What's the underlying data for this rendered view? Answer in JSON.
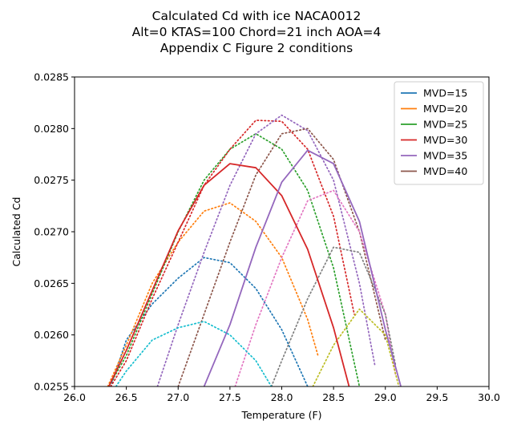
{
  "chart_data": {
    "type": "line",
    "title_lines": [
      "Calculated Cd with ice NACA0012",
      "Alt=0 KTAS=100 Chord=21 inch AOA=4",
      "Appendix C Figure 2 conditions"
    ],
    "xlabel": "Temperature (F)",
    "ylabel": "Calculated Cd",
    "xlim": [
      26.0,
      30.0
    ],
    "ylim": [
      0.0255,
      0.0285
    ],
    "xticks": [
      "26.0",
      "26.5",
      "27.0",
      "27.5",
      "28.0",
      "28.5",
      "29.0",
      "29.5",
      "30.0"
    ],
    "yticks": [
      "0.0255",
      "0.0260",
      "0.0265",
      "0.0270",
      "0.0275",
      "0.0280",
      "0.0285"
    ],
    "grid": false,
    "legend_position": "top-right",
    "legend": [
      {
        "label": "MVD=15",
        "color": "#1f77b4"
      },
      {
        "label": "MVD=20",
        "color": "#ff7f0e"
      },
      {
        "label": "MVD=25",
        "color": "#2ca02c"
      },
      {
        "label": "MVD=30",
        "color": "#d62728"
      },
      {
        "label": "MVD=35",
        "color": "#9467bd"
      },
      {
        "label": "MVD=40",
        "color": "#8c564b"
      }
    ],
    "series": [
      {
        "color": "#1f77b4",
        "style": "dotted",
        "x": [
          26.35,
          26.5,
          26.75,
          27.0,
          27.25,
          27.5,
          27.75,
          28.0,
          28.25
        ],
        "y": [
          0.0255,
          0.02595,
          0.0263,
          0.02655,
          0.02675,
          0.0267,
          0.02645,
          0.02605,
          0.0255
        ]
      },
      {
        "color": "#ff7f0e",
        "style": "dotted",
        "x": [
          26.32,
          26.5,
          26.75,
          27.0,
          27.25,
          27.5,
          27.75,
          28.0,
          28.25,
          28.35
        ],
        "y": [
          0.0255,
          0.0259,
          0.0265,
          0.0269,
          0.0272,
          0.02728,
          0.0271,
          0.02675,
          0.02615,
          0.0258
        ]
      },
      {
        "color": "#2ca02c",
        "style": "dotted",
        "x": [
          26.33,
          26.5,
          26.75,
          27.0,
          27.25,
          27.5,
          27.75,
          28.0,
          28.25,
          28.5,
          28.75
        ],
        "y": [
          0.0255,
          0.0258,
          0.0264,
          0.027,
          0.0275,
          0.0278,
          0.02795,
          0.0278,
          0.0274,
          0.02665,
          0.0255
        ]
      },
      {
        "color": "#d62728",
        "style": "dotted",
        "x": [
          26.35,
          26.5,
          26.75,
          27.0,
          27.25,
          27.5,
          27.75,
          28.0,
          28.25,
          28.5,
          28.7
        ],
        "y": [
          0.0255,
          0.02575,
          0.02635,
          0.0269,
          0.02745,
          0.0278,
          0.02808,
          0.02807,
          0.0278,
          0.02715,
          0.0262
        ]
      },
      {
        "color": "#9467bd",
        "style": "dotted",
        "x": [
          26.8,
          27.0,
          27.25,
          27.5,
          27.75,
          28.0,
          28.25,
          28.5,
          28.75,
          28.9
        ],
        "y": [
          0.0255,
          0.0261,
          0.0268,
          0.02745,
          0.02795,
          0.02813,
          0.02798,
          0.0275,
          0.0265,
          0.0257
        ]
      },
      {
        "color": "#8c564b",
        "style": "dotted",
        "x": [
          27.0,
          27.25,
          27.5,
          27.75,
          28.0,
          28.25,
          28.5,
          28.75,
          29.0
        ],
        "y": [
          0.0255,
          0.0262,
          0.0269,
          0.02755,
          0.02795,
          0.028,
          0.0277,
          0.027,
          0.02595
        ]
      },
      {
        "color": "#e377c2",
        "style": "dotted",
        "x": [
          27.55,
          27.75,
          28.0,
          28.25,
          28.5,
          28.75,
          29.0,
          29.1
        ],
        "y": [
          0.0255,
          0.0261,
          0.02675,
          0.0273,
          0.0274,
          0.027,
          0.0262,
          0.0256
        ]
      },
      {
        "color": "#7f7f7f",
        "style": "dotted",
        "x": [
          27.9,
          28.0,
          28.25,
          28.5,
          28.75,
          29.0,
          29.1
        ],
        "y": [
          0.0255,
          0.02575,
          0.02635,
          0.02685,
          0.0268,
          0.0262,
          0.0257
        ]
      },
      {
        "color": "#bcbd22",
        "style": "dotted",
        "x": [
          28.3,
          28.5,
          28.75,
          29.0,
          29.13
        ],
        "y": [
          0.0255,
          0.0259,
          0.02625,
          0.026,
          0.0255
        ]
      },
      {
        "color": "#17becf",
        "style": "dotted",
        "x": [
          26.4,
          26.5,
          26.75,
          27.0,
          27.25,
          27.5,
          27.75,
          27.9
        ],
        "y": [
          0.0255,
          0.02565,
          0.02595,
          0.02607,
          0.02613,
          0.026,
          0.02575,
          0.0255
        ]
      },
      {
        "color": "#d62728",
        "style": "solid",
        "x": [
          26.33,
          26.5,
          26.75,
          27.0,
          27.25,
          27.5,
          27.75,
          28.0,
          28.25,
          28.5,
          28.65
        ],
        "y": [
          0.0255,
          0.02585,
          0.02643,
          0.02701,
          0.02745,
          0.02766,
          0.02762,
          0.02735,
          0.02683,
          0.02607,
          0.0255
        ]
      },
      {
        "color": "#9467bd",
        "style": "solid",
        "x": [
          27.25,
          27.5,
          27.75,
          28.0,
          28.25,
          28.5,
          28.75,
          29.0,
          29.15
        ],
        "y": [
          0.0255,
          0.0261,
          0.02685,
          0.02748,
          0.02779,
          0.02766,
          0.0271,
          0.02605,
          0.0255
        ]
      }
    ]
  }
}
